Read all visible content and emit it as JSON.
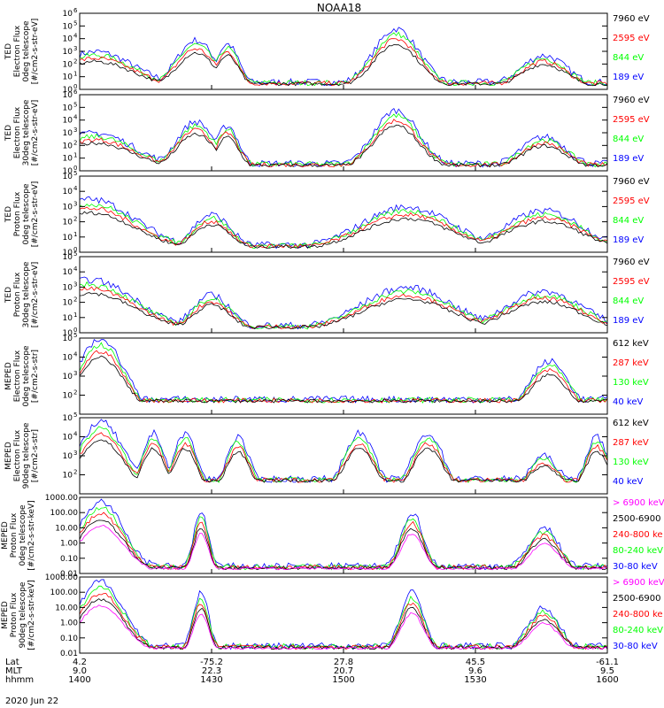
{
  "title": "NOAA18",
  "date": "2020 Jun 22",
  "ephemeris": {
    "row_labels": [
      "Lat",
      "MLT",
      "hhmm"
    ],
    "columns": [
      {
        "Lat": "4.2",
        "MLT": "9.0",
        "hhmm": "1400"
      },
      {
        "Lat": "-75.2",
        "MLT": "22.3",
        "hhmm": "1430"
      },
      {
        "Lat": "27.8",
        "MLT": "20.7",
        "hhmm": "1500"
      },
      {
        "Lat": "45.5",
        "MLT": "9.6",
        "hhmm": "1530"
      },
      {
        "Lat": "-61.1",
        "MLT": "9.5",
        "hhmm": "1600"
      }
    ]
  },
  "colors": {
    "black": "#000000",
    "red": "#ff0000",
    "green": "#00ff00",
    "blue": "#0000ff",
    "magenta": "#ff00ff"
  },
  "chart_data": [
    {
      "type": "line",
      "ylabel": [
        "TED",
        "Electron Flux",
        "0deg telescope",
        "[#/cm2-s-str-eV]"
      ],
      "yscale": "log",
      "ylim": [
        1,
        1000000
      ],
      "yticks": [
        {
          "v": 1,
          "t": "10",
          "e": "0"
        },
        {
          "v": 10,
          "t": "10",
          "e": "1"
        },
        {
          "v": 100,
          "t": "10",
          "e": "2"
        },
        {
          "v": 1000,
          "t": "10",
          "e": "3"
        },
        {
          "v": 10000,
          "t": "10",
          "e": "4"
        },
        {
          "v": 100000,
          "t": "10",
          "e": "5"
        },
        {
          "v": 1000000,
          "t": "10",
          "e": "6"
        }
      ],
      "legend": [
        {
          "label": "7960 eV",
          "color": "#000000"
        },
        {
          "label": "2595 eV",
          "color": "#ff0000"
        },
        {
          "label": "844 eV",
          "color": "#00ff00"
        },
        {
          "label": "189 eV",
          "color": "#0000ff"
        }
      ]
    },
    {
      "type": "line",
      "ylabel": [
        "TED",
        "Electron Flux",
        "30deg telescope",
        "[#/cm2-s-str-eV]"
      ],
      "yscale": "log",
      "ylim": [
        1,
        1000000
      ],
      "yticks": [
        {
          "v": 1,
          "t": "10",
          "e": "0"
        },
        {
          "v": 10,
          "t": "10",
          "e": "1"
        },
        {
          "v": 100,
          "t": "10",
          "e": "2"
        },
        {
          "v": 1000,
          "t": "10",
          "e": "3"
        },
        {
          "v": 10000,
          "t": "10",
          "e": "4"
        },
        {
          "v": 100000,
          "t": "10",
          "e": "5"
        },
        {
          "v": 1000000,
          "t": "10",
          "e": "6"
        }
      ],
      "legend": [
        {
          "label": "7960 eV",
          "color": "#000000"
        },
        {
          "label": "2595 eV",
          "color": "#ff0000"
        },
        {
          "label": "844 eV",
          "color": "#00ff00"
        },
        {
          "label": "189 eV",
          "color": "#0000ff"
        }
      ]
    },
    {
      "type": "line",
      "ylabel": [
        "TED",
        "Proton Flux",
        "0deg telescope",
        "[#/cm2-s-str-eV]"
      ],
      "yscale": "log",
      "ylim": [
        1,
        100000
      ],
      "yticks": [
        {
          "v": 1,
          "t": "10",
          "e": "0"
        },
        {
          "v": 10,
          "t": "10",
          "e": "1"
        },
        {
          "v": 100,
          "t": "10",
          "e": "2"
        },
        {
          "v": 1000,
          "t": "10",
          "e": "3"
        },
        {
          "v": 10000,
          "t": "10",
          "e": "4"
        },
        {
          "v": 100000,
          "t": "10",
          "e": "5"
        }
      ],
      "legend": [
        {
          "label": "7960 eV",
          "color": "#000000"
        },
        {
          "label": "2595 eV",
          "color": "#ff0000"
        },
        {
          "label": "844 eV",
          "color": "#00ff00"
        },
        {
          "label": "189 eV",
          "color": "#0000ff"
        }
      ]
    },
    {
      "type": "line",
      "ylabel": [
        "TED",
        "Proton Flux",
        "30deg telescope",
        "[#/cm2-s-str-eV]"
      ],
      "yscale": "log",
      "ylim": [
        1,
        100000
      ],
      "yticks": [
        {
          "v": 1,
          "t": "10",
          "e": "0"
        },
        {
          "v": 10,
          "t": "10",
          "e": "1"
        },
        {
          "v": 100,
          "t": "10",
          "e": "2"
        },
        {
          "v": 1000,
          "t": "10",
          "e": "3"
        },
        {
          "v": 10000,
          "t": "10",
          "e": "4"
        },
        {
          "v": 100000,
          "t": "10",
          "e": "5"
        }
      ],
      "legend": [
        {
          "label": "7960 eV",
          "color": "#000000"
        },
        {
          "label": "2595 eV",
          "color": "#ff0000"
        },
        {
          "label": "844 eV",
          "color": "#00ff00"
        },
        {
          "label": "189 eV",
          "color": "#0000ff"
        }
      ]
    },
    {
      "type": "line",
      "ylabel": [
        "MEPED",
        "Electron Flux",
        "0deg telescope",
        "[#/cm2-s-str]"
      ],
      "yscale": "log",
      "ylim": [
        10,
        100000
      ],
      "yticks": [
        {
          "v": 100,
          "t": "10",
          "e": "2"
        },
        {
          "v": 1000,
          "t": "10",
          "e": "3"
        },
        {
          "v": 10000,
          "t": "10",
          "e": "4"
        },
        {
          "v": 100000,
          "t": "10",
          "e": "5"
        }
      ],
      "legend": [
        {
          "label": "612 keV",
          "color": "#000000"
        },
        {
          "label": "287 keV",
          "color": "#ff0000"
        },
        {
          "label": "130 keV",
          "color": "#00ff00"
        },
        {
          "label": "40 keV",
          "color": "#0000ff"
        }
      ]
    },
    {
      "type": "line",
      "ylabel": [
        "MEPED",
        "Electron Flux",
        "90deg telescope",
        "[#/cm2-s-str]"
      ],
      "yscale": "log",
      "ylim": [
        10,
        100000
      ],
      "yticks": [
        {
          "v": 100,
          "t": "10",
          "e": "2"
        },
        {
          "v": 1000,
          "t": "10",
          "e": "3"
        },
        {
          "v": 10000,
          "t": "10",
          "e": "4"
        },
        {
          "v": 100000,
          "t": "10",
          "e": "5"
        }
      ],
      "legend": [
        {
          "label": "612 keV",
          "color": "#000000"
        },
        {
          "label": "287 keV",
          "color": "#ff0000"
        },
        {
          "label": "130 keV",
          "color": "#00ff00"
        },
        {
          "label": "40 keV",
          "color": "#0000ff"
        }
      ]
    },
    {
      "type": "line",
      "ylabel": [
        "MEPED",
        "Proton Flux",
        "0deg telescope",
        "[#/cm2-s-str-keV]"
      ],
      "yscale": "log",
      "ylim": [
        0.01,
        1000
      ],
      "yticks": [
        {
          "v": 0.01,
          "t": "0.01"
        },
        {
          "v": 0.1,
          "t": "0.10"
        },
        {
          "v": 1,
          "t": "1.00"
        },
        {
          "v": 10,
          "t": "10.00"
        },
        {
          "v": 100,
          "t": "100.00"
        },
        {
          "v": 1000,
          "t": "1000.00"
        }
      ],
      "legend": [
        {
          "label": "> 6900 keV",
          "color": "#ff00ff"
        },
        {
          "label": "2500-6900",
          "color": "#000000"
        },
        {
          "label": "240-800 ke",
          "color": "#ff0000"
        },
        {
          "label": "80-240 keV",
          "color": "#00ff00"
        },
        {
          "label": "30-80 keV",
          "color": "#0000ff"
        }
      ]
    },
    {
      "type": "line",
      "ylabel": [
        "MEPED",
        "Proton Flux",
        "90deg telescope",
        "[#/cm2-s-str-keV]"
      ],
      "yscale": "log",
      "ylim": [
        0.01,
        1000
      ],
      "yticks": [
        {
          "v": 0.01,
          "t": "0.01"
        },
        {
          "v": 0.1,
          "t": "0.10"
        },
        {
          "v": 1,
          "t": "1.00"
        },
        {
          "v": 10,
          "t": "10.00"
        },
        {
          "v": 100,
          "t": "100.00"
        },
        {
          "v": 1000,
          "t": "1000.00"
        }
      ],
      "legend": [
        {
          "label": "> 6900 keV",
          "color": "#ff00ff"
        },
        {
          "label": "2500-6900",
          "color": "#000000"
        },
        {
          "label": "240-800 ke",
          "color": "#ff0000"
        },
        {
          "label": "80-240 keV",
          "color": "#00ff00"
        },
        {
          "label": "30-80 keV",
          "color": "#0000ff"
        }
      ]
    }
  ]
}
